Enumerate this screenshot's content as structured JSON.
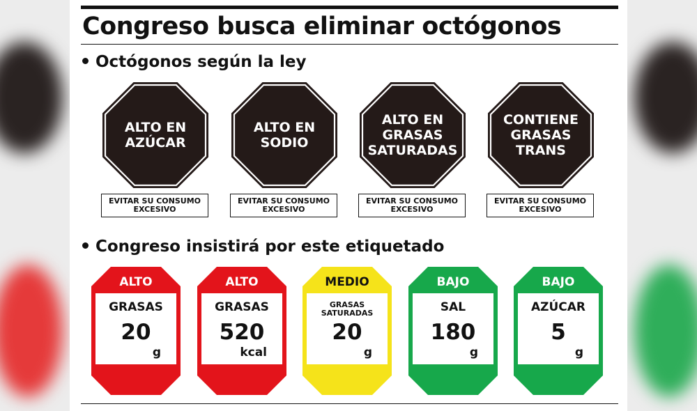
{
  "headline": "Congreso busca eliminar octógonos",
  "section1": {
    "title": "Octógonos según la ley"
  },
  "octagons": [
    {
      "text": "ALTO EN\nAZÚCAR",
      "warning": "EVITAR SU CONSUMO\nEXCESIVO"
    },
    {
      "text": "ALTO EN\nSODIO",
      "warning": "EVITAR SU CONSUMO\nEXCESIVO"
    },
    {
      "text": "ALTO EN\nGRASAS\nSATURADAS",
      "warning": "EVITAR SU CONSUMO\nEXCESIVO"
    },
    {
      "text": "CONTIENE\nGRASAS\nTRANS",
      "warning": "EVITAR SU CONSUMO\nEXCESIVO"
    }
  ],
  "section2": {
    "title": "Congreso insistirá por este etiquetado"
  },
  "labels": [
    {
      "level": "ALTO",
      "nutrient": "GRASAS",
      "value": "20",
      "unit": "g",
      "color": "#e3141b",
      "level_text_color": "#ffffff"
    },
    {
      "level": "ALTO",
      "nutrient": "GRASAS",
      "value": "520",
      "unit": "kcal",
      "color": "#e3141b",
      "level_text_color": "#ffffff"
    },
    {
      "level": "MEDIO",
      "nutrient": "GRASAS\nSATURADAS",
      "value": "20",
      "unit": "g",
      "color": "#f5e31a",
      "level_text_color": "#111111"
    },
    {
      "level": "BAJO",
      "nutrient": "SAL",
      "value": "180",
      "unit": "g",
      "color": "#17a84b",
      "level_text_color": "#ffffff"
    },
    {
      "level": "BAJO",
      "nutrient": "AZÚCAR",
      "value": "5",
      "unit": "g",
      "color": "#17a84b",
      "level_text_color": "#ffffff"
    }
  ],
  "colors": {
    "octagon": "#241a18",
    "ink": "#111111"
  }
}
